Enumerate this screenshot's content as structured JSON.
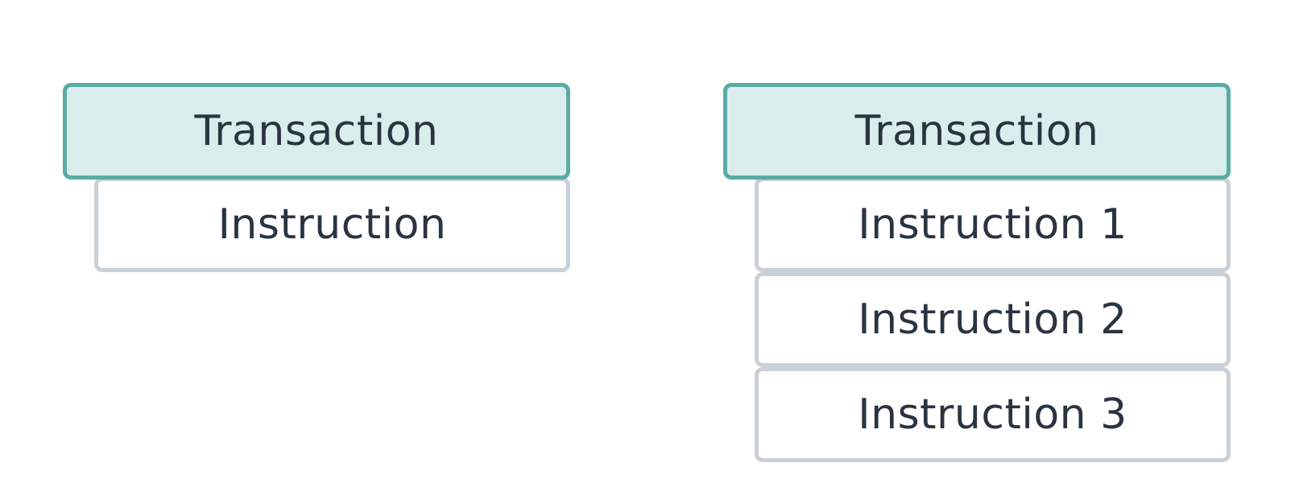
{
  "left_diagram": {
    "transaction_label": "Transaction",
    "instructions": [
      "Instruction"
    ]
  },
  "right_diagram": {
    "transaction_label": "Transaction",
    "instructions": [
      "Instruction 1",
      "Instruction 2",
      "Instruction 3"
    ]
  },
  "colors": {
    "transaction_fill": "#d9eeec",
    "transaction_border": "#5aaca3",
    "instruction_fill": "#ffffff",
    "instruction_border": "#c8d0d8",
    "text": "#2a3441"
  }
}
